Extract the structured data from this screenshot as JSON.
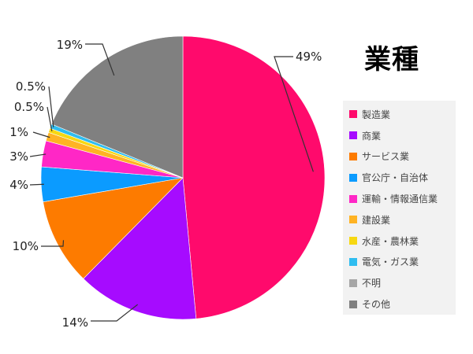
{
  "chart_data": {
    "type": "pie",
    "title": "業種",
    "legend_position": "right",
    "slices": [
      {
        "label": "製造業",
        "value": 49,
        "display": "49%",
        "color": "#ff0a6c"
      },
      {
        "label": "商業",
        "value": 14,
        "display": "14%",
        "color": "#a60bff"
      },
      {
        "label": "サービス業",
        "value": 10,
        "display": "10%",
        "color": "#fd7b00"
      },
      {
        "label": "官公庁・自治体",
        "value": 4,
        "display": "4%",
        "color": "#0b9bff"
      },
      {
        "label": "運輸・情報通信業",
        "value": 3,
        "display": "3%",
        "color": "#ff27c6"
      },
      {
        "label": "建設業",
        "value": 1,
        "display": "1%",
        "color": "#ffb324"
      },
      {
        "label": "水産・農林業",
        "value": 0.5,
        "display": "0.5%",
        "color": "#f7d812"
      },
      {
        "label": "電気・ガス業",
        "value": 0.5,
        "display": "0.5%",
        "color": "#2fbdf0"
      },
      {
        "label": "不明",
        "value": 0,
        "display": "",
        "color": "#a6a6a6"
      },
      {
        "label": "その他",
        "value": 19,
        "display": "19%",
        "color": "#808080"
      }
    ]
  }
}
